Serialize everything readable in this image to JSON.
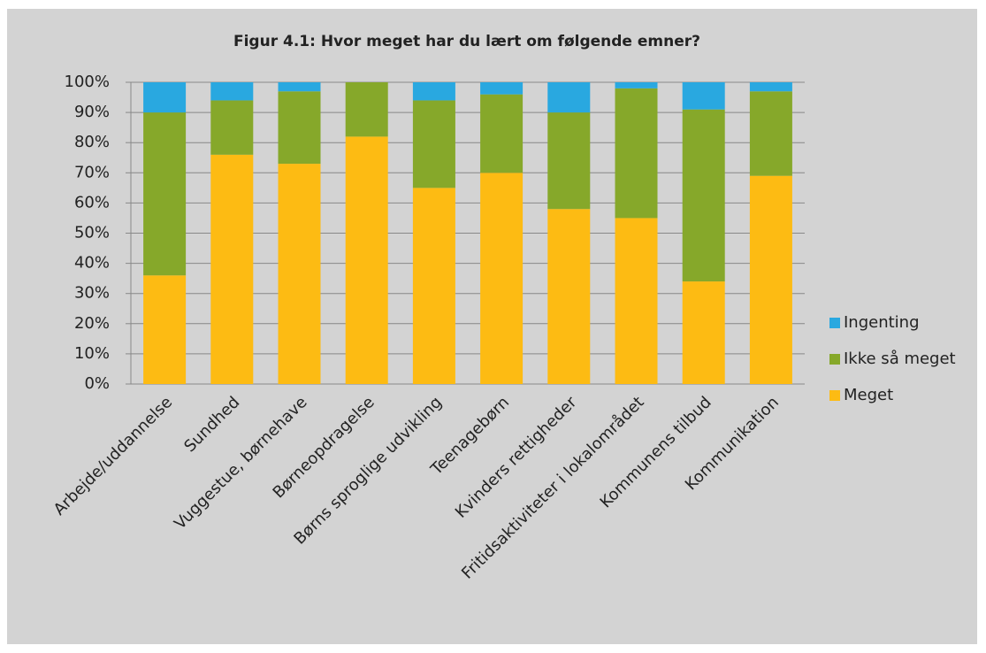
{
  "chart_data": {
    "type": "stacked_bar",
    "title": "Figur 4.1: Hvor meget har du lært om følgende emner?",
    "categories": [
      "Arbejde/uddannelse",
      "Sundhed",
      "Vuggestue, børnehave",
      "Børneopdragelse",
      "Børns sproglige udvikling",
      "Teenagebørn",
      "Kvinders rettigheder",
      "Fritidsaktiviteter i lokalområdet",
      "Kommunens tilbud",
      "Kommunikation"
    ],
    "series": [
      {
        "name": "Meget",
        "color": "#fdbb13",
        "values": [
          36,
          76,
          73,
          82,
          65,
          70,
          58,
          55,
          34,
          69
        ]
      },
      {
        "name": "Ikke så meget",
        "color": "#86a82a",
        "values": [
          54,
          18,
          24,
          18,
          29,
          26,
          32,
          43,
          57,
          28
        ]
      },
      {
        "name": "Ingenting",
        "color": "#29a8e0",
        "values": [
          10,
          6,
          3,
          0,
          6,
          4,
          10,
          2,
          9,
          3
        ]
      }
    ],
    "ylim": [
      0,
      100
    ],
    "yticks": [
      {
        "value": 0,
        "label": "0%"
      },
      {
        "value": 10,
        "label": "10%"
      },
      {
        "value": 20,
        "label": "20%"
      },
      {
        "value": 30,
        "label": "30%"
      },
      {
        "value": 40,
        "label": "40%"
      },
      {
        "value": 50,
        "label": "50%"
      },
      {
        "value": 60,
        "label": "60%"
      },
      {
        "value": 70,
        "label": "70%"
      },
      {
        "value": 80,
        "label": "80%"
      },
      {
        "value": 90,
        "label": "90%"
      },
      {
        "value": 100,
        "label": "100%"
      }
    ],
    "grid": true,
    "legend": "right"
  }
}
